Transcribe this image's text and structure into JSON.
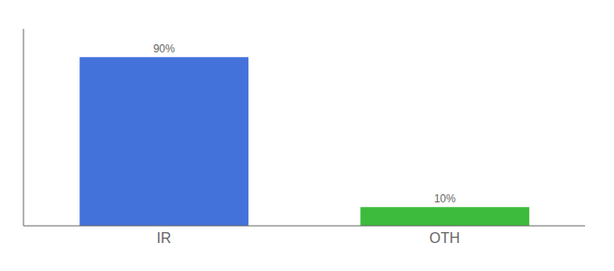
{
  "chart_data": {
    "type": "bar",
    "categories": [
      "IR",
      "OTH"
    ],
    "values": [
      90,
      10
    ],
    "colors": [
      "#4472db",
      "#3dbb3d"
    ],
    "value_labels": [
      "90%",
      "10%"
    ],
    "data_labels": true,
    "ylim": [
      0,
      105
    ],
    "tick_labels": "x",
    "grid": false
  }
}
